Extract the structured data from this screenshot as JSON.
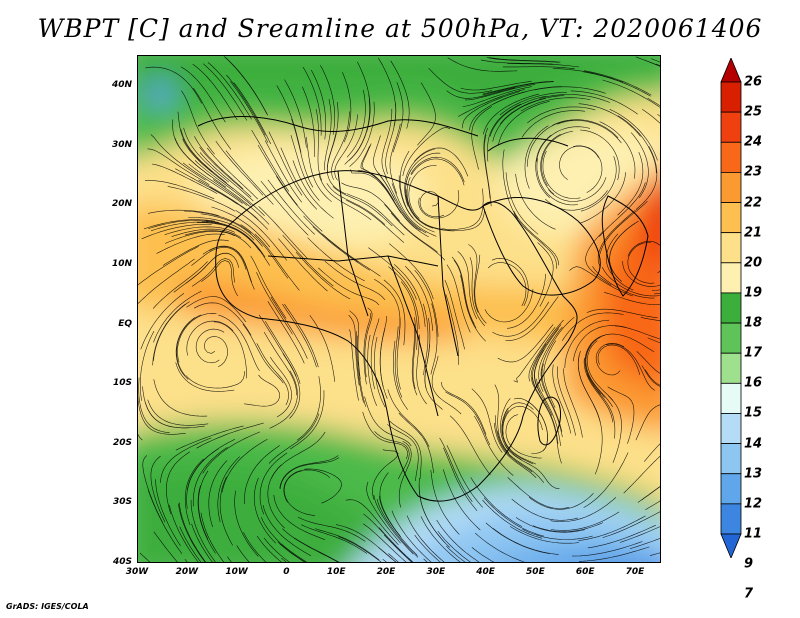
{
  "title": "WBPT [C] and Sreamline at 500hPa, VT: 2020061406",
  "footer": "GrADS: IGES/COLA",
  "map": {
    "lon_range": [
      -30,
      75
    ],
    "lat_range": [
      -40,
      45
    ],
    "lat_ticks": [
      "40N",
      "30N",
      "20N",
      "10N",
      "EQ",
      "10S",
      "20S",
      "30S",
      "40S"
    ],
    "lon_ticks": [
      "30W",
      "20W",
      "10W",
      "0",
      "10E",
      "20E",
      "30E",
      "40E",
      "50E",
      "60E",
      "70E"
    ]
  },
  "colorbar": {
    "labels": [
      "26",
      "25",
      "24",
      "23",
      "22",
      "21",
      "20",
      "19",
      "18",
      "17",
      "16",
      "15",
      "14",
      "13",
      "12",
      "11",
      "9",
      "7"
    ],
    "colors": [
      "#b40000",
      "#d82000",
      "#f04010",
      "#f86818",
      "#fb9a30",
      "#fdc050",
      "#fde08a",
      "#fdf0b0",
      "#3cae3c",
      "#5ec45a",
      "#9ee08e",
      "#e6faf6",
      "#b4dcf6",
      "#8ec6f2",
      "#5fa6ea",
      "#3c86e2",
      "#2266d6"
    ]
  }
}
